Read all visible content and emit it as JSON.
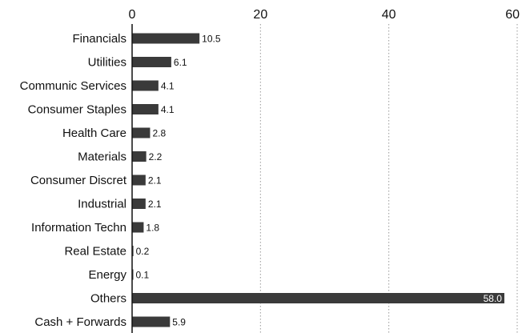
{
  "chart_data": {
    "type": "bar",
    "orientation": "horizontal",
    "categories": [
      "Financials",
      "Utilities",
      "Communic Services",
      "Consumer Staples",
      "Health Care",
      "Materials",
      "Consumer Discret",
      "Industrial",
      "Information Techn",
      "Real Estate",
      "Energy",
      "Others",
      "Cash + Forwards"
    ],
    "values": [
      10.5,
      6.1,
      4.1,
      4.1,
      2.8,
      2.2,
      2.1,
      2.1,
      1.8,
      0.2,
      0.1,
      58.0,
      5.9
    ],
    "value_labels": [
      "10.5",
      "6.1",
      "4.1",
      "4.1",
      "2.8",
      "2.2",
      "2.1",
      "2.1",
      "1.8",
      "0.2",
      "0.1",
      "58.0",
      "5.9"
    ],
    "title": "",
    "xlabel": "",
    "ylabel": "",
    "xlim": [
      0,
      60
    ],
    "x_ticks": [
      0,
      20,
      40,
      60
    ],
    "x_tick_labels": [
      "0",
      "20",
      "40",
      "60"
    ],
    "x_axis_position": "top",
    "grid": "vertical dotted",
    "legend": "none",
    "colors": {
      "bar": "#3a3a3a",
      "axis": "#111111",
      "grid": "#999999",
      "text": "#111111",
      "inside_label": "#ffffff"
    }
  }
}
